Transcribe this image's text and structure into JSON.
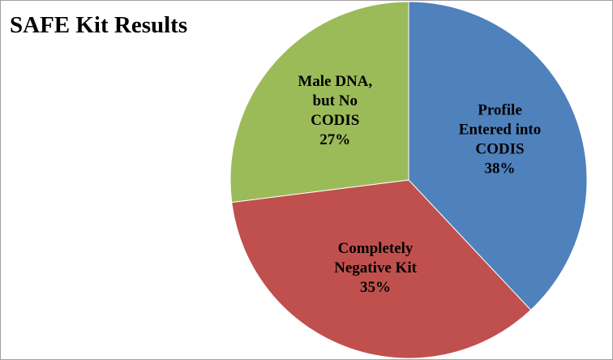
{
  "chart_data": {
    "type": "pie",
    "title": "SAFE Kit Results",
    "categories": [
      "Profile\nEntered into\nCODIS",
      "Completely\nNegative Kit",
      "Male DNA,\nbut No\nCODIS"
    ],
    "values": [
      38,
      35,
      27
    ],
    "value_labels": [
      "38%",
      "35%",
      "27%"
    ],
    "colors": [
      "#4f81bd",
      "#c0504d",
      "#9bbb59"
    ]
  }
}
